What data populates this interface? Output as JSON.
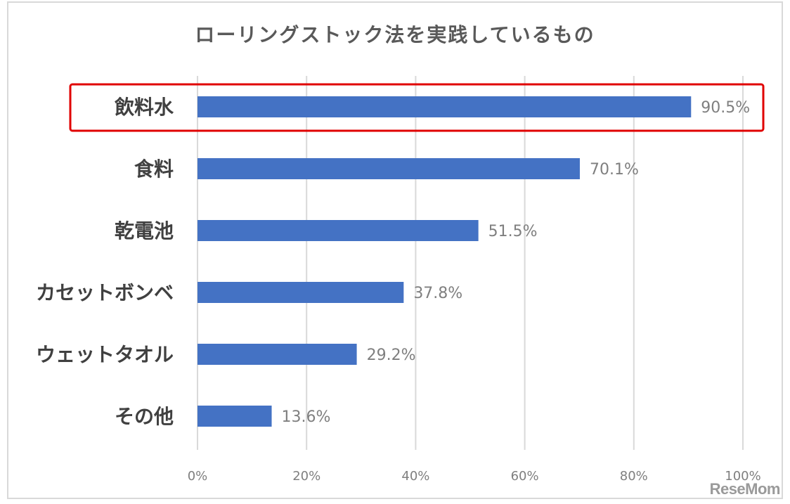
{
  "chart_data": {
    "type": "bar",
    "orientation": "horizontal",
    "title": "ローリングストック法を実践しているもの",
    "categories": [
      "飲料水",
      "食料",
      "乾電池",
      "カセットボンベ",
      "ウェットタオル",
      "その他"
    ],
    "values": [
      90.5,
      70.1,
      51.5,
      37.8,
      29.2,
      13.6
    ],
    "value_labels": [
      "90.5%",
      "70.1%",
      "51.5%",
      "37.8%",
      "29.2%",
      "13.6%"
    ],
    "xlim": [
      0,
      100
    ],
    "x_ticks": [
      "0%",
      "20%",
      "40%",
      "60%",
      "80%",
      "100%"
    ],
    "grid": true,
    "bar_color": "#4472c4",
    "highlight": {
      "category": "飲料水",
      "color": "#e00000"
    }
  },
  "watermark": "ReseMom"
}
